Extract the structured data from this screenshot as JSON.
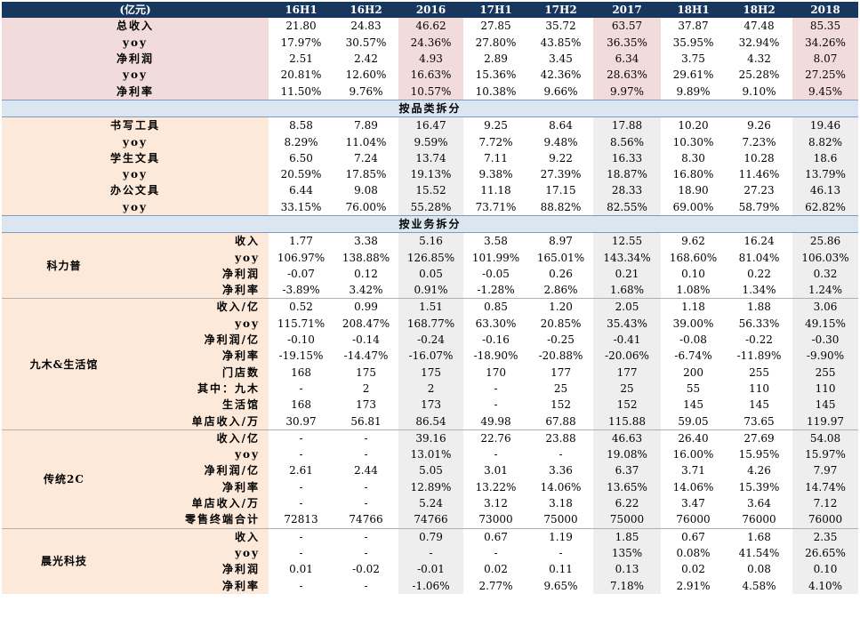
{
  "header": [
    "(亿元)",
    "16H1",
    "16H2",
    "2016",
    "17H1",
    "17H2",
    "2017",
    "18H1",
    "18H2",
    "2018"
  ],
  "summary": [
    {
      "label": "总收入",
      "values": [
        "21.80",
        "24.83",
        "46.62",
        "27.85",
        "35.72",
        "63.57",
        "37.87",
        "47.48",
        "85.35"
      ]
    },
    {
      "label": "yoy",
      "values": [
        "17.97%",
        "30.57%",
        "24.36%",
        "27.80%",
        "43.85%",
        "36.35%",
        "35.95%",
        "32.94%",
        "34.26%"
      ]
    },
    {
      "label": "净利润",
      "values": [
        "2.51",
        "2.42",
        "4.93",
        "2.89",
        "3.45",
        "6.34",
        "3.75",
        "4.32",
        "8.07"
      ]
    },
    {
      "label": "yoy",
      "values": [
        "20.81%",
        "12.60%",
        "16.63%",
        "15.36%",
        "42.36%",
        "28.63%",
        "29.61%",
        "25.28%",
        "27.25%"
      ]
    },
    {
      "label": "净利率",
      "values": [
        "11.50%",
        "9.76%",
        "10.57%",
        "10.38%",
        "9.66%",
        "9.97%",
        "9.89%",
        "9.10%",
        "9.45%"
      ]
    }
  ],
  "section_product": "按品类拆分",
  "product": [
    {
      "label": "书写工具",
      "values": [
        "8.58",
        "7.89",
        "16.47",
        "9.25",
        "8.64",
        "17.88",
        "10.20",
        "9.26",
        "19.46"
      ]
    },
    {
      "label": "yoy",
      "values": [
        "8.29%",
        "11.04%",
        "9.59%",
        "7.72%",
        "9.48%",
        "8.56%",
        "10.30%",
        "7.23%",
        "8.82%"
      ]
    },
    {
      "label": "学生文具",
      "values": [
        "6.50",
        "7.24",
        "13.74",
        "7.11",
        "9.22",
        "16.33",
        "8.30",
        "10.28",
        "18.6"
      ]
    },
    {
      "label": "yoy",
      "values": [
        "20.59%",
        "17.85%",
        "19.13%",
        "9.38%",
        "27.39%",
        "18.87%",
        "16.80%",
        "11.46%",
        "13.79%"
      ]
    },
    {
      "label": "办公文具",
      "values": [
        "6.44",
        "9.08",
        "15.52",
        "11.18",
        "17.15",
        "28.33",
        "18.90",
        "27.23",
        "46.13"
      ]
    },
    {
      "label": "yoy",
      "values": [
        "33.15%",
        "76.00%",
        "55.28%",
        "73.71%",
        "88.82%",
        "82.55%",
        "69.00%",
        "58.79%",
        "62.82%"
      ]
    }
  ],
  "section_business": "按业务拆分",
  "business": [
    {
      "group": "科力普",
      "rows": [
        {
          "label": "收入",
          "values": [
            "1.77",
            "3.38",
            "5.16",
            "3.58",
            "8.97",
            "12.55",
            "9.62",
            "16.24",
            "25.86"
          ]
        },
        {
          "label": "yoy",
          "values": [
            "106.97%",
            "138.88%",
            "126.85%",
            "101.99%",
            "165.01%",
            "143.34%",
            "168.60%",
            "81.04%",
            "106.03%"
          ]
        },
        {
          "label": "净利润",
          "values": [
            "-0.07",
            "0.12",
            "0.05",
            "-0.05",
            "0.26",
            "0.21",
            "0.10",
            "0.22",
            "0.32"
          ]
        },
        {
          "label": "净利率",
          "values": [
            "-3.89%",
            "3.42%",
            "0.91%",
            "-1.28%",
            "2.86%",
            "1.68%",
            "1.08%",
            "1.34%",
            "1.24%"
          ]
        }
      ]
    },
    {
      "group": "九木&生活馆",
      "rows": [
        {
          "label": "收入/亿",
          "values": [
            "0.52",
            "0.99",
            "1.51",
            "0.85",
            "1.20",
            "2.05",
            "1.18",
            "1.88",
            "3.06"
          ]
        },
        {
          "label": "yoy",
          "values": [
            "115.71%",
            "208.47%",
            "168.77%",
            "63.30%",
            "20.85%",
            "35.43%",
            "39.00%",
            "56.33%",
            "49.15%"
          ]
        },
        {
          "label": "净利润/亿",
          "values": [
            "-0.10",
            "-0.14",
            "-0.24",
            "-0.16",
            "-0.25",
            "-0.41",
            "-0.08",
            "-0.22",
            "-0.30"
          ]
        },
        {
          "label": "净利率",
          "values": [
            "-19.15%",
            "-14.47%",
            "-16.07%",
            "-18.90%",
            "-20.88%",
            "-20.06%",
            "-6.74%",
            "-11.89%",
            "-9.90%"
          ]
        },
        {
          "label": "门店数",
          "values": [
            "168",
            "175",
            "175",
            "170",
            "177",
            "177",
            "200",
            "255",
            "255"
          ]
        },
        {
          "label": "其中：九木",
          "values": [
            "-",
            "2",
            "2",
            "-",
            "25",
            "25",
            "55",
            "110",
            "110"
          ]
        },
        {
          "label": "生活馆",
          "values": [
            "168",
            "173",
            "173",
            "-",
            "152",
            "152",
            "145",
            "145",
            "145"
          ]
        },
        {
          "label": "单店收入/万",
          "values": [
            "30.97",
            "56.81",
            "86.54",
            "49.98",
            "67.88",
            "115.88",
            "59.05",
            "73.65",
            "119.97"
          ]
        }
      ]
    },
    {
      "group": "传统2C",
      "rows": [
        {
          "label": "收入/亿",
          "values": [
            "-",
            "-",
            "39.16",
            "22.76",
            "23.88",
            "46.63",
            "26.40",
            "27.69",
            "54.08"
          ]
        },
        {
          "label": "yoy",
          "values": [
            "-",
            "-",
            "13.01%",
            "-",
            "-",
            "19.08%",
            "16.00%",
            "15.95%",
            "15.97%"
          ]
        },
        {
          "label": "净利润/亿",
          "values": [
            "2.61",
            "2.44",
            "5.05",
            "3.01",
            "3.36",
            "6.37",
            "3.71",
            "4.26",
            "7.97"
          ]
        },
        {
          "label": "净利率",
          "values": [
            "-",
            "-",
            "12.89%",
            "13.22%",
            "14.06%",
            "13.65%",
            "14.06%",
            "15.39%",
            "14.74%"
          ]
        },
        {
          "label": "单店收入/万",
          "values": [
            "-",
            "-",
            "5.24",
            "3.12",
            "3.18",
            "6.22",
            "3.47",
            "3.64",
            "7.12"
          ]
        },
        {
          "label": "零售终端合计",
          "values": [
            "72813",
            "74766",
            "74766",
            "73000",
            "75000",
            "75000",
            "76000",
            "76000",
            "76000"
          ]
        }
      ]
    },
    {
      "group": "晨光科技",
      "rows": [
        {
          "label": "收入",
          "values": [
            "-",
            "-",
            "0.79",
            "0.67",
            "1.19",
            "1.85",
            "0.67",
            "1.68",
            "2.35"
          ]
        },
        {
          "label": "yoy",
          "values": [
            "-",
            "-",
            "-",
            "-",
            "-",
            "135%",
            "0.08%",
            "41.54%",
            "26.65%"
          ]
        },
        {
          "label": "净利润",
          "values": [
            "0.01",
            "-0.02",
            "-0.01",
            "0.02",
            "0.11",
            "0.13",
            "0.02",
            "0.08",
            "0.10"
          ]
        },
        {
          "label": "净利率",
          "values": [
            "-",
            "-",
            "-1.06%",
            "2.77%",
            "9.65%",
            "7.18%",
            "2.91%",
            "4.58%",
            "4.10%"
          ]
        }
      ]
    }
  ]
}
